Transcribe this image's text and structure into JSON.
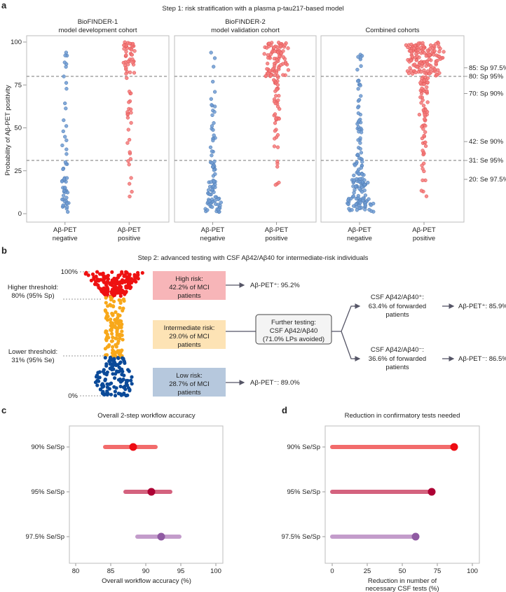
{
  "colors": {
    "neg": "#6f9bd2",
    "pos": "#f47a7a",
    "high": "#ee1111",
    "mid": "#f8a81a",
    "low": "#0b4a99",
    "box_high": "#f7b5b8",
    "box_mid": "#fde3b5",
    "box_low": "#b6c8dd"
  },
  "chart_data": [
    {
      "type": "scatter",
      "panel_label": "a",
      "title": "Step 1: risk stratification with a plasma p-tau217-based model",
      "ylabel": "Probability of Aβ-PET positivity",
      "ylim": [
        0,
        100
      ],
      "yticks": [
        "0",
        "25",
        "50",
        "75",
        "100"
      ],
      "categories": [
        {
          "l1": "Aβ-PET",
          "l2": "negative"
        },
        {
          "l1": "Aβ-PET",
          "l2": "positive"
        }
      ],
      "thresholds": [
        80,
        31
      ],
      "threshold_labels": [
        {
          "v": 85,
          "text": "85: Sp 97.5%"
        },
        {
          "v": 80,
          "text": "80: Sp 95%"
        },
        {
          "v": 70,
          "text": "70: Sp 90%"
        },
        {
          "v": 42,
          "text": "42: Se 90%"
        },
        {
          "v": 31,
          "text": "31: Se 95%"
        },
        {
          "v": 20,
          "text": "20: Se 97.5%"
        }
      ],
      "cohorts": [
        {
          "title1": "BioFINDER-1",
          "title2": "model development cohort",
          "negative_bins": [
            [
              1,
              10,
              14
            ],
            [
              10,
              20,
              14
            ],
            [
              20,
              30,
              7
            ],
            [
              30,
              50,
              7
            ],
            [
              50,
              70,
              4
            ],
            [
              70,
              95,
              9
            ]
          ],
          "positive_bins": [
            [
              5,
              30,
              5
            ],
            [
              30,
              55,
              8
            ],
            [
              55,
              80,
              14
            ],
            [
              80,
              100,
              45
            ]
          ]
        },
        {
          "title1": "BioFINDER-2",
          "title2": "model validation cohort",
          "negative_bins": [
            [
              1,
              10,
              30
            ],
            [
              10,
              20,
              20
            ],
            [
              20,
              30,
              12
            ],
            [
              30,
              50,
              12
            ],
            [
              50,
              70,
              9
            ],
            [
              70,
              95,
              5
            ]
          ],
          "positive_bins": [
            [
              15,
              35,
              6
            ],
            [
              35,
              55,
              10
            ],
            [
              55,
              80,
              28
            ],
            [
              80,
              100,
              90
            ]
          ]
        },
        {
          "title1": "",
          "title2": "Combined cohorts",
          "negative_bins": [
            [
              1,
              10,
              48
            ],
            [
              10,
              20,
              34
            ],
            [
              20,
              30,
              20
            ],
            [
              30,
              50,
              20
            ],
            [
              50,
              70,
              13
            ],
            [
              70,
              95,
              14
            ]
          ],
          "positive_bins": [
            [
              5,
              35,
              10
            ],
            [
              35,
              55,
              18
            ],
            [
              55,
              80,
              45
            ],
            [
              80,
              100,
              140
            ]
          ]
        }
      ]
    },
    {
      "type": "scatter",
      "title": "Overall 2-step workflow accuracy",
      "panel_label": "c",
      "xlabel": "Overall workflow accuracy (%)",
      "xlim": [
        80,
        100
      ],
      "xticks": [
        "80",
        "85",
        "90",
        "95",
        "100"
      ],
      "rows": [
        {
          "label": "90% Se/Sp",
          "value": 88.2,
          "low": 84.2,
          "high": 91.4,
          "bar": "#f26b6b",
          "point": "#ee0b12"
        },
        {
          "label": "95% Se/Sp",
          "value": 90.8,
          "low": 87.1,
          "high": 93.5,
          "bar": "#d4627e",
          "point": "#ad0034"
        },
        {
          "label": "97.5% Se/Sp",
          "value": 92.2,
          "low": 88.8,
          "high": 94.8,
          "bar": "#c39ccb",
          "point": "#8f5aa2"
        }
      ]
    },
    {
      "type": "bar",
      "title": "Reduction in confirmatory tests needed",
      "panel_label": "d",
      "xlabel1": "Reduction in number of",
      "xlabel2": "necessary CSF tests (%)",
      "xlim": [
        0,
        100
      ],
      "xticks": [
        "0",
        "25",
        "50",
        "75",
        "100"
      ],
      "rows": [
        {
          "label": "90% Se/Sp",
          "value": 87,
          "bar": "#f26b6b",
          "point": "#ee0b12"
        },
        {
          "label": "95% Se/Sp",
          "value": 71,
          "bar": "#d4627e",
          "point": "#ad0034"
        },
        {
          "label": "97.5% Se/Sp",
          "value": 59.5,
          "bar": "#c39ccb",
          "point": "#8f5aa2"
        }
      ]
    }
  ],
  "step2": {
    "panel_label": "b",
    "title": "Step 2: advanced testing with CSF Aβ42/Aβ40 for intermediate-risk individuals",
    "top": "100%",
    "bottom": "0%",
    "higher1": "Higher threshold:",
    "higher2": "80% (95% Sp)",
    "lower1": "Lower threshold:",
    "lower2": "31% (95% Se)",
    "high": [
      "High risk:",
      "42.2% of MCI",
      "patients"
    ],
    "high_out": "Aβ-PET⁺: 95.2%",
    "mid": [
      "Intermediate risk:",
      "29.0% of MCI",
      "patients"
    ],
    "low": [
      "Low risk:",
      "28.7% of MCI",
      "patients"
    ],
    "low_out": "Aβ-PET⁻: 89.0%",
    "further": [
      "Further testing:",
      "CSF Aβ42/Aβ40",
      "(71.0% LPs avoided)"
    ],
    "csfpos": [
      "CSF Aβ42/Aβ40⁺:",
      "63.4% of forwarded",
      "patients"
    ],
    "csfpos_out": "Aβ-PET⁺: 85.9%",
    "csfneg": [
      "CSF Aβ42/Aβ40⁻:",
      "36.6% of forwarded",
      "patients"
    ],
    "csfneg_out": "Aβ-PET⁻: 86.5%",
    "swarm_bins": [
      [
        80,
        100,
        170,
        "high"
      ],
      [
        31,
        80,
        115,
        "mid"
      ],
      [
        0,
        31,
        120,
        "low"
      ]
    ]
  }
}
